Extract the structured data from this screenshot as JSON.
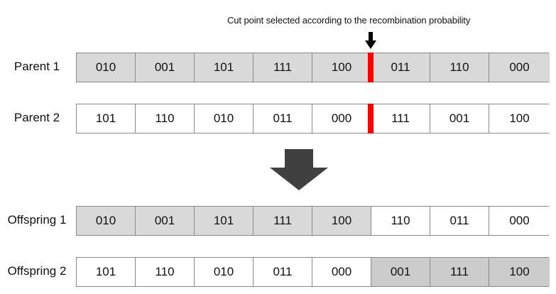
{
  "annotation": "Cut point selected according to the recombination probability",
  "colors": {
    "shaded": "#d9d9d9",
    "shaded_dark": "#cccccc",
    "cut_point": "#ff0000",
    "arrow": "#404040"
  },
  "icons": {
    "cut_marker": "down-arrow-icon",
    "transition": "big-down-arrow-icon"
  },
  "rows": [
    {
      "label": "Parent 1",
      "genes": [
        {
          "value": "010",
          "shade": "shaded"
        },
        {
          "value": "001",
          "shade": "shaded"
        },
        {
          "value": "101",
          "shade": "shaded"
        },
        {
          "value": "111",
          "shade": "shaded"
        },
        {
          "value": "100",
          "shade": "shaded"
        },
        {
          "value": "011",
          "shade": "shaded"
        },
        {
          "value": "110",
          "shade": "shaded"
        },
        {
          "value": "000",
          "shade": "shaded"
        }
      ]
    },
    {
      "label": "Parent 2",
      "genes": [
        {
          "value": "101",
          "shade": "plain"
        },
        {
          "value": "110",
          "shade": "plain"
        },
        {
          "value": "010",
          "shade": "plain"
        },
        {
          "value": "011",
          "shade": "plain"
        },
        {
          "value": "000",
          "shade": "plain"
        },
        {
          "value": "111",
          "shade": "plain"
        },
        {
          "value": "001",
          "shade": "plain"
        },
        {
          "value": "100",
          "shade": "plain"
        }
      ]
    },
    {
      "label": "Offspring 1",
      "genes": [
        {
          "value": "010",
          "shade": "shaded"
        },
        {
          "value": "001",
          "shade": "shaded"
        },
        {
          "value": "101",
          "shade": "shaded"
        },
        {
          "value": "111",
          "shade": "shaded"
        },
        {
          "value": "100",
          "shade": "shaded"
        },
        {
          "value": "110",
          "shade": "plain"
        },
        {
          "value": "011",
          "shade": "plain"
        },
        {
          "value": "000",
          "shade": "plain"
        }
      ]
    },
    {
      "label": "Offspring 2",
      "genes": [
        {
          "value": "101",
          "shade": "plain"
        },
        {
          "value": "110",
          "shade": "plain"
        },
        {
          "value": "010",
          "shade": "plain"
        },
        {
          "value": "011",
          "shade": "plain"
        },
        {
          "value": "000",
          "shade": "plain"
        },
        {
          "value": "001",
          "shade": "shaded-dark"
        },
        {
          "value": "111",
          "shade": "shaded-dark"
        },
        {
          "value": "100",
          "shade": "shaded-dark"
        }
      ]
    }
  ]
}
